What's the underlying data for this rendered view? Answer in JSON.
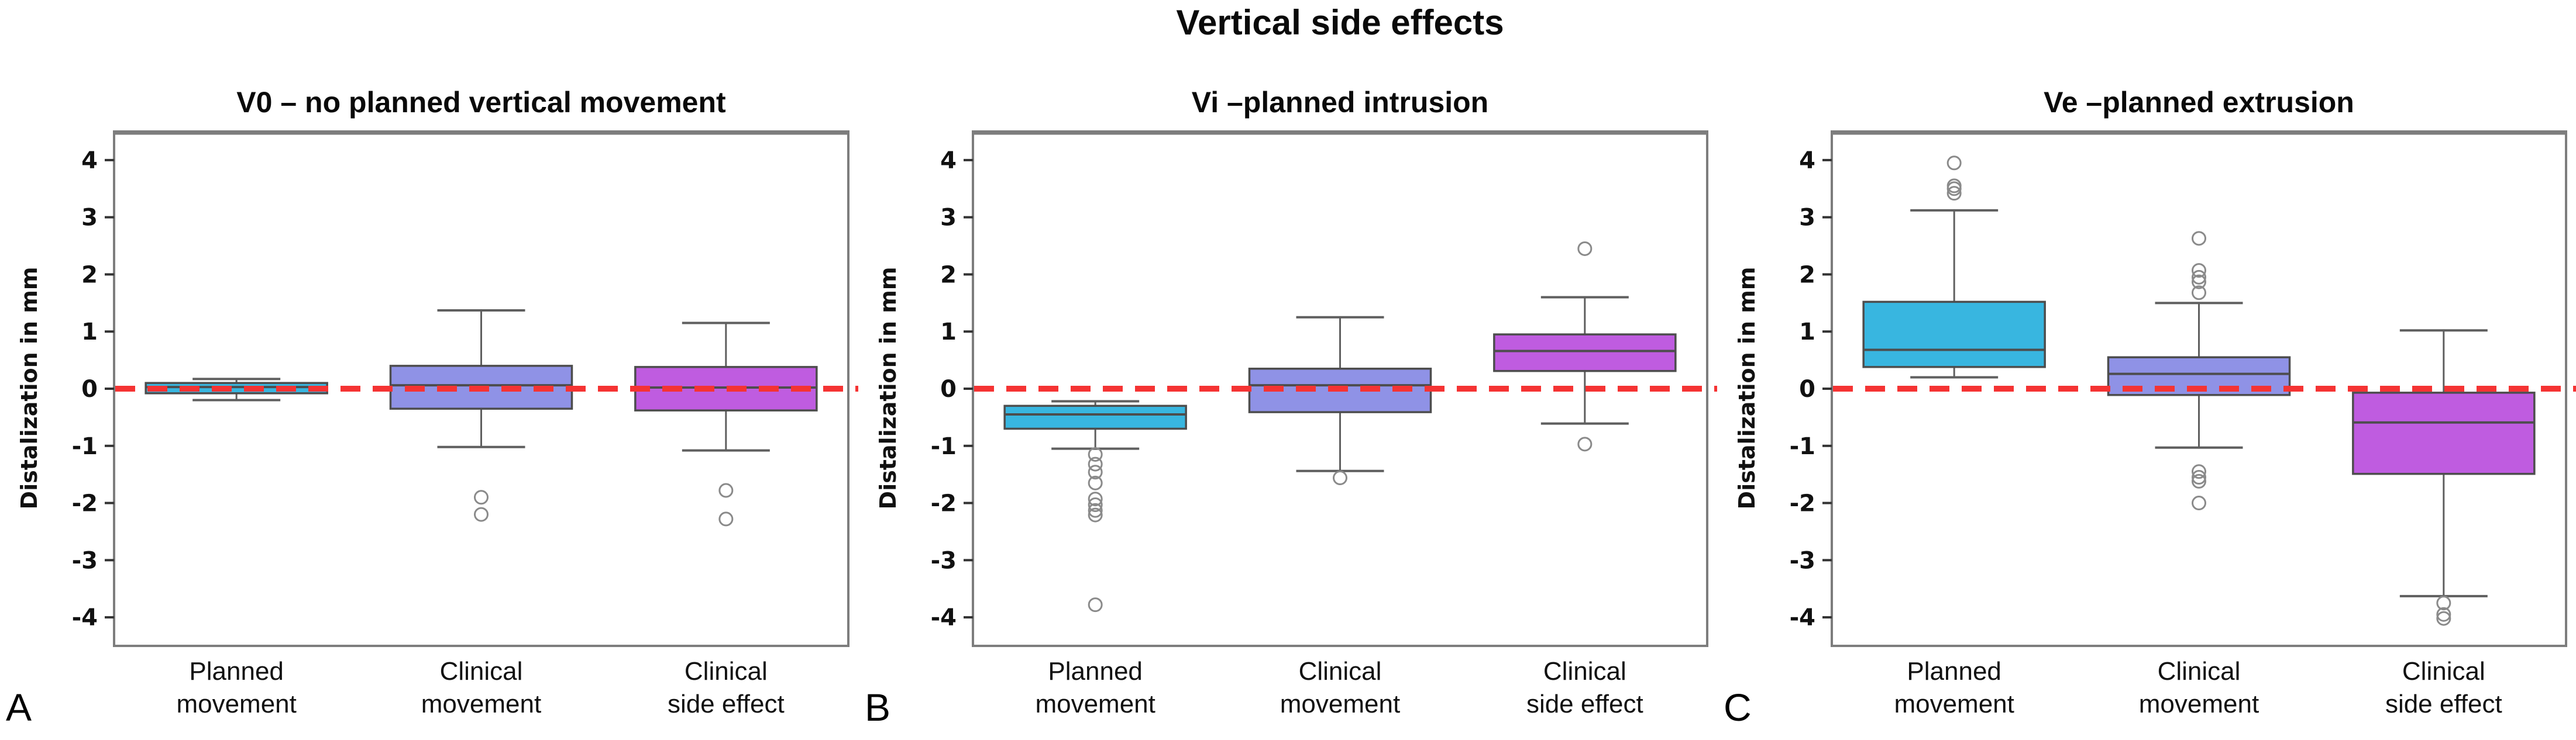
{
  "figure": {
    "title": "Vertical side effects"
  },
  "colors": {
    "planned_box": "#38b6e0",
    "clinical_movement_box": "#8f92e6",
    "clinical_side_effect_box": "#bf5ce0",
    "reference_line": "#f53333",
    "box_border": "#4d4d4d",
    "whisker": "#5f5f5f",
    "outlier_ring": "#8a8a8a",
    "frame": "#7d7d7d",
    "tick_color": "#333333"
  },
  "chart_data": [
    {
      "type": "box",
      "panel_label": "A",
      "title": "V0 – no planned vertical movement",
      "ylabel": "Distalization in mm",
      "ylim": [
        -4.5,
        4.5
      ],
      "yticks": [
        4,
        3,
        2,
        1,
        0,
        -1,
        -2,
        -3,
        -4
      ],
      "reference_line_y": 0,
      "grid": false,
      "categories": [
        [
          "Planned",
          "movement"
        ],
        [
          "Clinical",
          "movement"
        ],
        [
          "Clinical",
          "side effect"
        ]
      ],
      "boxes": [
        {
          "label": "Planned movement",
          "color": "planned_box",
          "whislo": -0.2,
          "q1": -0.08,
          "med": 0.03,
          "q3": 0.1,
          "whishi": 0.17,
          "outliers": []
        },
        {
          "label": "Clinical movement",
          "color": "clinical_movement_box",
          "whislo": -1.02,
          "q1": -0.35,
          "med": 0.06,
          "q3": 0.4,
          "whishi": 1.37,
          "outliers": [
            -1.9,
            -2.2
          ]
        },
        {
          "label": "Clinical side effect",
          "color": "clinical_side_effect_box",
          "whislo": -1.08,
          "q1": -0.38,
          "med": 0.02,
          "q3": 0.38,
          "whishi": 1.15,
          "outliers": [
            -1.78,
            -2.28
          ]
        }
      ]
    },
    {
      "type": "box",
      "panel_label": "B",
      "title": "Vi –planned intrusion",
      "ylabel": "Distalization in mm",
      "ylim": [
        -4.5,
        4.5
      ],
      "yticks": [
        4,
        3,
        2,
        1,
        0,
        -1,
        -2,
        -3,
        -4
      ],
      "reference_line_y": 0,
      "grid": false,
      "categories": [
        [
          "Planned",
          "movement"
        ],
        [
          "Clinical",
          "movement"
        ],
        [
          "Clinical",
          "side effect"
        ]
      ],
      "boxes": [
        {
          "label": "Planned movement",
          "color": "planned_box",
          "whislo": -1.05,
          "q1": -0.7,
          "med": -0.45,
          "q3": -0.3,
          "whishi": -0.22,
          "outliers": [
            -1.15,
            -1.32,
            -1.46,
            -1.65,
            -1.93,
            -2.03,
            -2.13,
            -2.21,
            -3.78
          ]
        },
        {
          "label": "Clinical movement",
          "color": "clinical_movement_box",
          "whislo": -1.44,
          "q1": -0.41,
          "med": 0.06,
          "q3": 0.35,
          "whishi": 1.25,
          "outliers": [
            -1.56
          ]
        },
        {
          "label": "Clinical side effect",
          "color": "clinical_side_effect_box",
          "whislo": -0.61,
          "q1": 0.31,
          "med": 0.66,
          "q3": 0.95,
          "whishi": 1.6,
          "outliers": [
            -0.97,
            2.45
          ]
        }
      ]
    },
    {
      "type": "box",
      "panel_label": "C",
      "title": "Ve –planned extrusion",
      "ylabel": "Distalization in mm",
      "ylim": [
        -4.5,
        4.5
      ],
      "yticks": [
        4,
        3,
        2,
        1,
        0,
        -1,
        -2,
        -3,
        -4
      ],
      "reference_line_y": 0,
      "grid": false,
      "categories": [
        [
          "Planned",
          "movement"
        ],
        [
          "Clinical",
          "movement"
        ],
        [
          "Clinical",
          "side effect"
        ]
      ],
      "boxes": [
        {
          "label": "Planned movement",
          "color": "planned_box",
          "whislo": 0.2,
          "q1": 0.38,
          "med": 0.68,
          "q3": 1.52,
          "whishi": 3.12,
          "outliers": [
            3.42,
            3.5,
            3.55,
            3.95
          ]
        },
        {
          "label": "Clinical movement",
          "color": "clinical_movement_box",
          "whislo": -1.03,
          "q1": -0.11,
          "med": 0.26,
          "q3": 0.55,
          "whishi": 1.5,
          "outliers": [
            -2.0,
            -1.62,
            -1.55,
            -1.45,
            1.68,
            1.87,
            1.95,
            2.07,
            2.63
          ]
        },
        {
          "label": "Clinical side effect",
          "color": "clinical_side_effect_box",
          "whislo": -3.63,
          "q1": -1.49,
          "med": -0.59,
          "q3": -0.07,
          "whishi": 1.02,
          "outliers": [
            -3.75,
            -3.95,
            -4.02
          ]
        }
      ]
    }
  ]
}
